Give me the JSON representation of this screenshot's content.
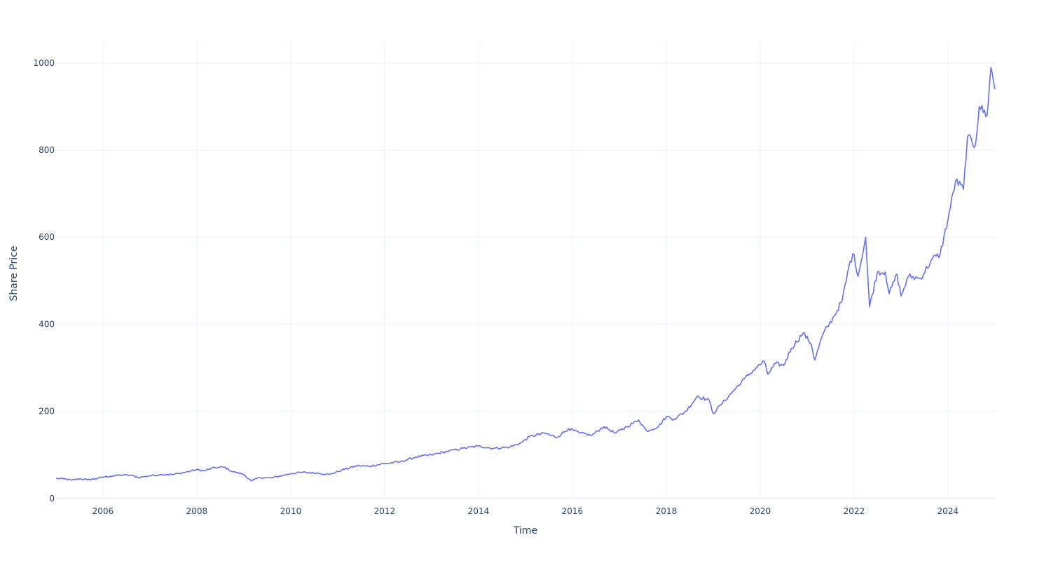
{
  "chart_data": {
    "type": "line",
    "xlabel": "Time",
    "ylabel": "Share Price",
    "xlim": [
      "2005-01-01",
      "2025-01-01"
    ],
    "ylim": [
      -2,
      1048
    ],
    "x_ticks": [
      "2006",
      "2008",
      "2010",
      "2012",
      "2014",
      "2016",
      "2018",
      "2020",
      "2022",
      "2024"
    ],
    "y_ticks": [
      "0",
      "200",
      "400",
      "600",
      "800",
      "1000"
    ],
    "grid": true,
    "legend": "none",
    "series": [
      {
        "color": "#636efa",
        "points": [
          [
            "2005-01-01",
            46
          ],
          [
            "2005-03-01",
            45
          ],
          [
            "2005-05-01",
            42
          ],
          [
            "2005-07-01",
            45
          ],
          [
            "2005-09-01",
            43
          ],
          [
            "2005-11-01",
            45
          ],
          [
            "2006-01-01",
            49
          ],
          [
            "2006-03-01",
            51
          ],
          [
            "2006-06-01",
            54
          ],
          [
            "2006-09-01",
            52
          ],
          [
            "2006-10-01",
            48
          ],
          [
            "2007-01-01",
            52
          ],
          [
            "2007-04-01",
            55
          ],
          [
            "2007-07-01",
            55
          ],
          [
            "2007-10-01",
            60
          ],
          [
            "2008-01-01",
            66
          ],
          [
            "2008-03-01",
            63
          ],
          [
            "2008-05-01",
            70
          ],
          [
            "2008-08-01",
            72
          ],
          [
            "2008-10-01",
            62
          ],
          [
            "2009-01-01",
            55
          ],
          [
            "2009-03-01",
            40
          ],
          [
            "2009-05-01",
            48
          ],
          [
            "2009-08-01",
            47
          ],
          [
            "2010-01-01",
            57
          ],
          [
            "2010-04-01",
            60
          ],
          [
            "2010-08-01",
            58
          ],
          [
            "2010-11-01",
            55
          ],
          [
            "2011-02-01",
            65
          ],
          [
            "2011-06-01",
            75
          ],
          [
            "2011-09-01",
            74
          ],
          [
            "2012-01-01",
            80
          ],
          [
            "2012-05-01",
            84
          ],
          [
            "2012-09-01",
            95
          ],
          [
            "2013-01-01",
            100
          ],
          [
            "2013-05-01",
            108
          ],
          [
            "2013-09-01",
            115
          ],
          [
            "2014-01-01",
            120
          ],
          [
            "2014-05-01",
            115
          ],
          [
            "2014-09-01",
            118
          ],
          [
            "2014-12-01",
            128
          ],
          [
            "2015-02-01",
            142
          ],
          [
            "2015-06-01",
            150
          ],
          [
            "2015-09-01",
            140
          ],
          [
            "2015-12-01",
            160
          ],
          [
            "2016-03-01",
            150
          ],
          [
            "2016-06-01",
            145
          ],
          [
            "2016-09-01",
            165
          ],
          [
            "2016-12-01",
            150
          ],
          [
            "2017-03-01",
            165
          ],
          [
            "2017-06-01",
            180
          ],
          [
            "2017-08-01",
            155
          ],
          [
            "2017-11-01",
            165
          ],
          [
            "2018-01-01",
            188
          ],
          [
            "2018-03-01",
            182
          ],
          [
            "2018-06-01",
            200
          ],
          [
            "2018-09-01",
            235
          ],
          [
            "2018-12-01",
            225
          ],
          [
            "2019-01-01",
            195
          ],
          [
            "2019-03-01",
            215
          ],
          [
            "2019-06-01",
            245
          ],
          [
            "2019-09-01",
            275
          ],
          [
            "2019-12-01",
            300
          ],
          [
            "2020-02-01",
            315
          ],
          [
            "2020-03-01",
            285
          ],
          [
            "2020-05-01",
            310
          ],
          [
            "2020-07-01",
            305
          ],
          [
            "2020-09-01",
            345
          ],
          [
            "2020-12-01",
            380
          ],
          [
            "2021-02-01",
            355
          ],
          [
            "2021-03-01",
            318
          ],
          [
            "2021-05-01",
            375
          ],
          [
            "2021-08-01",
            420
          ],
          [
            "2021-10-01",
            455
          ],
          [
            "2021-12-01",
            545
          ],
          [
            "2022-01-01",
            560
          ],
          [
            "2022-02-01",
            510
          ],
          [
            "2022-04-01",
            600
          ],
          [
            "2022-05-01",
            440
          ],
          [
            "2022-07-01",
            520
          ],
          [
            "2022-09-01",
            520
          ],
          [
            "2022-10-01",
            470
          ],
          [
            "2022-12-01",
            515
          ],
          [
            "2023-01-01",
            465
          ],
          [
            "2023-03-01",
            510
          ],
          [
            "2023-06-01",
            505
          ],
          [
            "2023-09-01",
            550
          ],
          [
            "2023-11-01",
            560
          ],
          [
            "2024-01-01",
            640
          ],
          [
            "2024-03-01",
            730
          ],
          [
            "2024-05-01",
            710
          ],
          [
            "2024-06-01",
            830
          ],
          [
            "2024-08-01",
            810
          ],
          [
            "2024-09-01",
            900
          ],
          [
            "2024-11-01",
            880
          ],
          [
            "2024-12-01",
            990
          ],
          [
            "2025-01-01",
            940
          ]
        ]
      }
    ]
  }
}
